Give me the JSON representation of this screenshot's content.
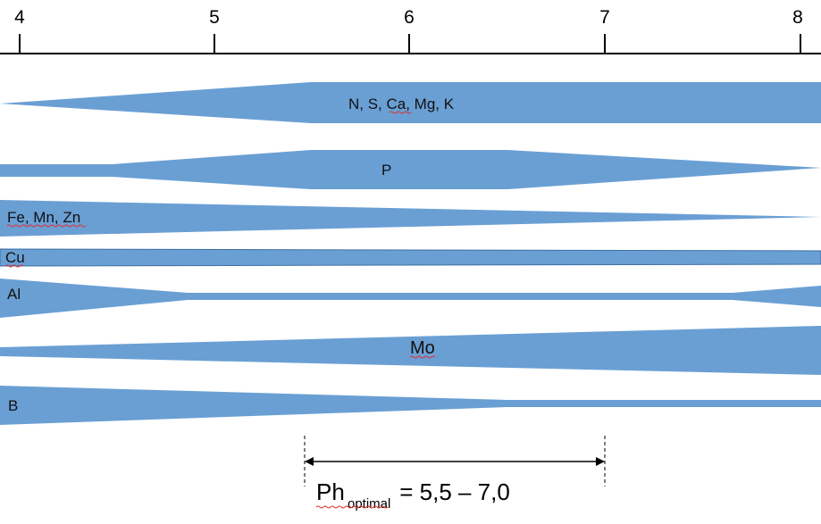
{
  "axis": {
    "ticks": [
      "4",
      "5",
      "6",
      "7",
      "8"
    ]
  },
  "bands": [
    {
      "label": "N, S, Ca, Mg, K"
    },
    {
      "label": "P"
    },
    {
      "label": "Fe, Mn, Zn"
    },
    {
      "label": "Cu"
    },
    {
      "label": "Al"
    },
    {
      "label": "Mo"
    },
    {
      "label": "B"
    }
  ],
  "optimal": {
    "symbol": "Ph",
    "subscript": "optimal",
    "value_text": " = 5,5 – 7,0",
    "range": [
      5.5,
      7.0
    ]
  },
  "colors": {
    "band_fill": "#6a9fd4",
    "axis": "#000000"
  }
}
